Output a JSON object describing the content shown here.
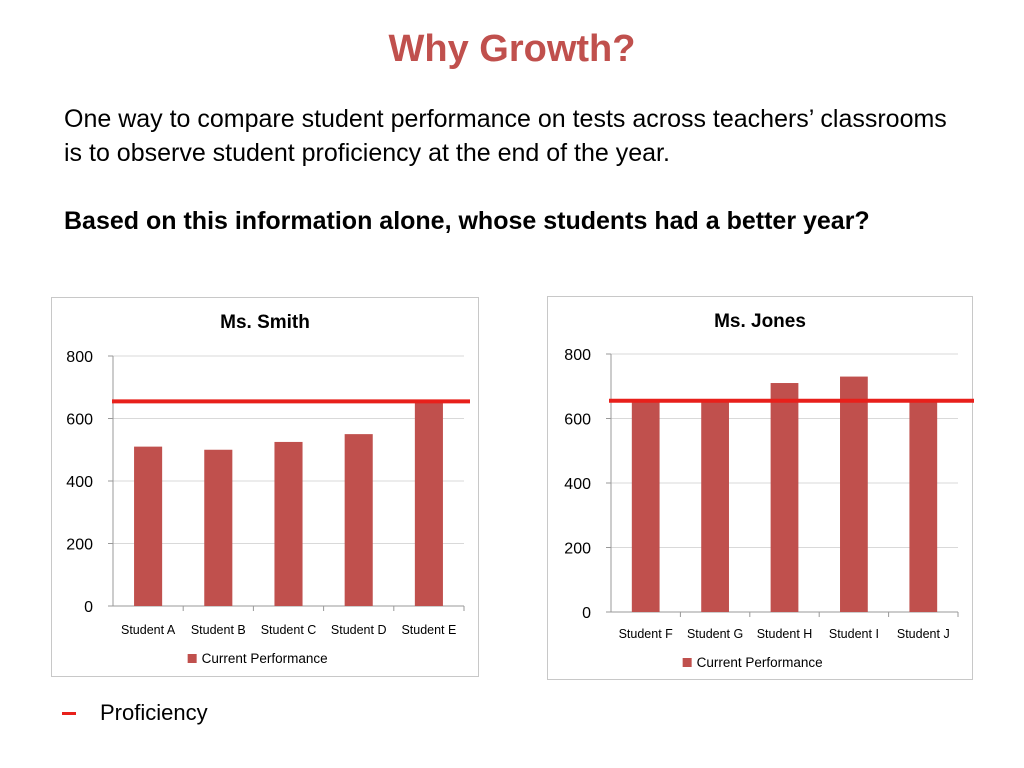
{
  "slide": {
    "title": "Why Growth?",
    "intro": "One way to compare student performance on tests across teachers’ classrooms is to observe student proficiency at the end of the year.",
    "question": "Based on this information alone, whose students had a better year?"
  },
  "legend": {
    "label": "Proficiency",
    "color": "#e8201b"
  },
  "colors": {
    "title": "#c0504d",
    "bar": "#c0504d",
    "proficiency_line": "#e8201b",
    "grid": "#d9d9d9"
  },
  "chart_data": [
    {
      "type": "bar",
      "title": "Ms. Smith",
      "categories": [
        "Student A",
        "Student B",
        "Student C",
        "Student D",
        "Student E"
      ],
      "series": [
        {
          "name": "Current Performance",
          "values": [
            510,
            500,
            525,
            550,
            660
          ]
        }
      ],
      "ylim": [
        0,
        800
      ],
      "yticks": [
        0,
        200,
        400,
        600,
        800
      ],
      "grid": true,
      "legend_position": "bottom",
      "reference_line": {
        "label": "Proficiency",
        "value": 655
      }
    },
    {
      "type": "bar",
      "title": "Ms. Jones",
      "categories": [
        "Student F",
        "Student G",
        "Student H",
        "Student I",
        "Student J"
      ],
      "series": [
        {
          "name": "Current Performance",
          "values": [
            655,
            660,
            710,
            730,
            660
          ]
        }
      ],
      "ylim": [
        0,
        800
      ],
      "yticks": [
        0,
        200,
        400,
        600,
        800
      ],
      "grid": true,
      "legend_position": "bottom",
      "reference_line": {
        "label": "Proficiency",
        "value": 655
      }
    }
  ]
}
